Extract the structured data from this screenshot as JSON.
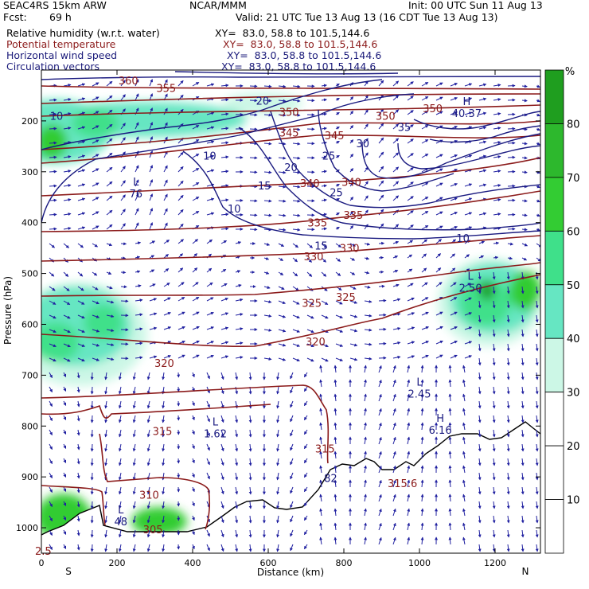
{
  "header": {
    "model": "SEAC4RS 15km ARW",
    "org": "NCAR/MMM",
    "init": "Init: 00 UTC Sun 11 Aug 13",
    "fcst_label": "Fcst:",
    "fcst_value": "69 h",
    "valid": "Valid: 21 UTC Tue 13 Aug 13 (16 CDT Tue 13 Aug 13)"
  },
  "fields": [
    {
      "label": "Relative humidity (w.r.t. water)",
      "xy": "XY=  83.0, 58.8 to 101.5,144.6",
      "color": "#000000"
    },
    {
      "label": "Potential temperature",
      "xy": "XY=  83.0, 58.8 to 101.5,144.6",
      "color": "#8b1a1a"
    },
    {
      "label": "Horizontal wind speed",
      "xy": "XY=  83.0, 58.8 to 101.5,144.6",
      "color": "#1a1a7a"
    },
    {
      "label": "Circulation vectors",
      "xy": "XY=  83.0, 58.8 to 101.5,144.6",
      "color": "#1a1a7a"
    }
  ],
  "colors": {
    "theta": "#8b1a1a",
    "wind": "#1a1a80",
    "vectors": "#2020a0",
    "terrain": "#000000",
    "rh_30": "#ccf7e6",
    "rh_40": "#66e6c2",
    "rh_50": "#3fe08a",
    "rh_60": "#33cc33",
    "rh_70": "#2db82d",
    "rh_80": "#1f9e1f"
  },
  "chart_data": {
    "type": "cross-section",
    "xlabel": "Distance (km)",
    "ylabel": "Pressure (hPa)",
    "xlim": [
      0,
      1320
    ],
    "ylim": [
      1050,
      100
    ],
    "x_ticks": [
      0,
      200,
      400,
      600,
      800,
      1000,
      1200
    ],
    "y_ticks": [
      200,
      300,
      400,
      500,
      600,
      700,
      800,
      900,
      1000
    ],
    "endpoints": {
      "left": "S",
      "right": "N"
    },
    "colorbar": {
      "unit": "%",
      "levels": [
        10,
        20,
        30,
        40,
        50,
        60,
        70,
        80
      ],
      "colors": [
        "#ffffff",
        "#ffffff",
        "#ffffff",
        "#ccf7e6",
        "#66e6c2",
        "#3fe08a",
        "#33cc33",
        "#2db82d",
        "#1f9e1f"
      ]
    },
    "theta_labels": [
      {
        "x": 230,
        "p": 120,
        "text": "360"
      },
      {
        "x": 330,
        "p": 135,
        "text": "355"
      },
      {
        "x": 655,
        "p": 182,
        "text": "350"
      },
      {
        "x": 910,
        "p": 190,
        "text": "350"
      },
      {
        "x": 1035,
        "p": 175,
        "text": "350"
      },
      {
        "x": 655,
        "p": 223,
        "text": "345"
      },
      {
        "x": 775,
        "p": 228,
        "text": "345"
      },
      {
        "x": 710,
        "p": 322,
        "text": "340"
      },
      {
        "x": 820,
        "p": 320,
        "text": "340"
      },
      {
        "x": 730,
        "p": 400,
        "text": "335"
      },
      {
        "x": 825,
        "p": 385,
        "text": "335"
      },
      {
        "x": 720,
        "p": 466,
        "text": "330"
      },
      {
        "x": 815,
        "p": 450,
        "text": "330"
      },
      {
        "x": 715,
        "p": 558,
        "text": "325"
      },
      {
        "x": 805,
        "p": 546,
        "text": "325"
      },
      {
        "x": 725,
        "p": 634,
        "text": "320"
      },
      {
        "x": 325,
        "p": 676,
        "text": "320"
      },
      {
        "x": 320,
        "p": 810,
        "text": "315"
      },
      {
        "x": 750,
        "p": 844,
        "text": "315"
      },
      {
        "x": 955,
        "p": 912,
        "text": "315.6"
      },
      {
        "x": 285,
        "p": 935,
        "text": "310"
      },
      {
        "x": 295,
        "p": 1003,
        "text": "305"
      },
      {
        "x": 5,
        "p": 1045,
        "text": "2.5"
      }
    ],
    "wind_labels": [
      {
        "x": 40,
        "p": 190,
        "text": "10"
      },
      {
        "x": 445,
        "p": 268,
        "text": "10"
      },
      {
        "x": 510,
        "p": 372,
        "text": "10"
      },
      {
        "x": 1115,
        "p": 430,
        "text": "10"
      },
      {
        "x": 585,
        "p": 160,
        "text": "20"
      },
      {
        "x": 660,
        "p": 291,
        "text": "20"
      },
      {
        "x": 590,
        "p": 327,
        "text": "15"
      },
      {
        "x": 740,
        "p": 445,
        "text": "15"
      },
      {
        "x": 760,
        "p": 268,
        "text": "25"
      },
      {
        "x": 780,
        "p": 340,
        "text": "25"
      },
      {
        "x": 850,
        "p": 244,
        "text": "30"
      },
      {
        "x": 960,
        "p": 212,
        "text": "35"
      }
    ],
    "extrema": [
      {
        "x": 250,
        "p": 333,
        "type": "L",
        "value": "76"
      },
      {
        "x": 460,
        "p": 805,
        "type": "L",
        "value": "1.62"
      },
      {
        "x": 210,
        "p": 978,
        "type": "L",
        "value": "48"
      },
      {
        "x": 1000,
        "p": 727,
        "type": "L",
        "value": "2.45"
      },
      {
        "x": 1135,
        "p": 519,
        "type": "L",
        "value": "2.50"
      },
      {
        "x": 1055,
        "p": 798,
        "type": "H",
        "value": "6.16"
      },
      {
        "x": 1125,
        "p": 175,
        "type": "H",
        "value": "40.37"
      },
      {
        "x": 765,
        "p": 893,
        "type": "",
        "value": "82"
      }
    ]
  }
}
